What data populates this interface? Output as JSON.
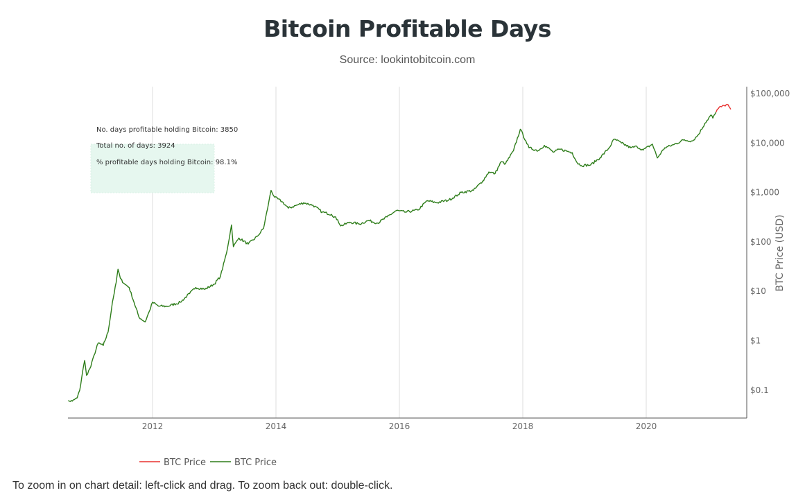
{
  "title": "Bitcoin Profitable Days",
  "subtitle": "Source: lookintobitcoin.com",
  "footer": "To zoom in on chart detail: left-click and drag. To zoom back out: double-click.",
  "annotations": {
    "profitable_days": "No. days profitable holding Bitcoin: 3850",
    "total_days": "Total no. of days: 3924",
    "pct_profitable": "% profitable days holding Bitcoin: 98.1%"
  },
  "chart_data": {
    "type": "line",
    "title": "Bitcoin Profitable Days",
    "ylabel": "BTC Price (USD)",
    "xlabel": "",
    "y_scale": "log",
    "y_axis_side": "right",
    "xlim": [
      2010.63,
      2021.4
    ],
    "ylim": [
      0.035,
      140000
    ],
    "x_ticks": [
      "2012",
      "2014",
      "2016",
      "2018",
      "2020"
    ],
    "y_ticks": [
      {
        "value": 0.1,
        "label": "$0.1"
      },
      {
        "value": 1,
        "label": "$1"
      },
      {
        "value": 10,
        "label": "$10"
      },
      {
        "value": 100,
        "label": "$100"
      },
      {
        "value": 1000,
        "label": "$1,000"
      },
      {
        "value": 10000,
        "label": "$10,000"
      },
      {
        "value": 100000,
        "label": "$100,000"
      }
    ],
    "grid": "vertical",
    "legend_placement": "bottom-left",
    "series": [
      {
        "name": "BTC Price",
        "color": "#e8312f",
        "points": [
          [
            2021.13,
            42000
          ],
          [
            2021.17,
            50000
          ],
          [
            2021.2,
            55000
          ],
          [
            2021.24,
            58000
          ],
          [
            2021.28,
            56000
          ],
          [
            2021.31,
            60000
          ],
          [
            2021.34,
            55000
          ],
          [
            2021.37,
            48000
          ]
        ]
      },
      {
        "name": "BTC Price",
        "color": "#2e7d1a",
        "points": [
          [
            2010.55,
            0.06
          ],
          [
            2010.7,
            0.06
          ],
          [
            2010.78,
            0.07
          ],
          [
            2010.82,
            0.1
          ],
          [
            2010.87,
            0.25
          ],
          [
            2010.9,
            0.4
          ],
          [
            2010.93,
            0.2
          ],
          [
            2011.0,
            0.3
          ],
          [
            2011.05,
            0.5
          ],
          [
            2011.12,
            0.9
          ],
          [
            2011.2,
            0.8
          ],
          [
            2011.28,
            1.5
          ],
          [
            2011.35,
            6
          ],
          [
            2011.41,
            15
          ],
          [
            2011.44,
            28
          ],
          [
            2011.48,
            18
          ],
          [
            2011.55,
            14
          ],
          [
            2011.62,
            12
          ],
          [
            2011.7,
            6
          ],
          [
            2011.78,
            3
          ],
          [
            2011.88,
            2.4
          ],
          [
            2011.95,
            4
          ],
          [
            2012.0,
            6
          ],
          [
            2012.1,
            5
          ],
          [
            2012.25,
            5
          ],
          [
            2012.45,
            6
          ],
          [
            2012.6,
            9
          ],
          [
            2012.7,
            12
          ],
          [
            2012.85,
            11
          ],
          [
            2013.0,
            14
          ],
          [
            2013.1,
            20
          ],
          [
            2013.2,
            60
          ],
          [
            2013.28,
            220
          ],
          [
            2013.31,
            80
          ],
          [
            2013.4,
            120
          ],
          [
            2013.55,
            90
          ],
          [
            2013.7,
            130
          ],
          [
            2013.8,
            190
          ],
          [
            2013.88,
            600
          ],
          [
            2013.92,
            1100
          ],
          [
            2013.98,
            800
          ],
          [
            2014.1,
            650
          ],
          [
            2014.2,
            480
          ],
          [
            2014.35,
            560
          ],
          [
            2014.45,
            620
          ],
          [
            2014.6,
            550
          ],
          [
            2014.75,
            400
          ],
          [
            2014.9,
            360
          ],
          [
            2015.0,
            280
          ],
          [
            2015.05,
            210
          ],
          [
            2015.2,
            250
          ],
          [
            2015.35,
            230
          ],
          [
            2015.5,
            270
          ],
          [
            2015.65,
            240
          ],
          [
            2015.8,
            320
          ],
          [
            2015.95,
            430
          ],
          [
            2016.1,
            400
          ],
          [
            2016.3,
            440
          ],
          [
            2016.45,
            680
          ],
          [
            2016.6,
            620
          ],
          [
            2016.8,
            700
          ],
          [
            2016.95,
            900
          ],
          [
            2017.0,
            1000
          ],
          [
            2017.2,
            1100
          ],
          [
            2017.35,
            1700
          ],
          [
            2017.45,
            2600
          ],
          [
            2017.55,
            2400
          ],
          [
            2017.65,
            4200
          ],
          [
            2017.72,
            3800
          ],
          [
            2017.85,
            7000
          ],
          [
            2017.96,
            19000
          ],
          [
            2018.05,
            11000
          ],
          [
            2018.1,
            8000
          ],
          [
            2018.25,
            7000
          ],
          [
            2018.35,
            9000
          ],
          [
            2018.5,
            6500
          ],
          [
            2018.6,
            7500
          ],
          [
            2018.8,
            6400
          ],
          [
            2018.88,
            4000
          ],
          [
            2018.95,
            3500
          ],
          [
            2019.1,
            3600
          ],
          [
            2019.25,
            5000
          ],
          [
            2019.4,
            8000
          ],
          [
            2019.48,
            12000
          ],
          [
            2019.6,
            10000
          ],
          [
            2019.75,
            8000
          ],
          [
            2019.85,
            8500
          ],
          [
            2019.95,
            7200
          ],
          [
            2020.1,
            9500
          ],
          [
            2020.18,
            5000
          ],
          [
            2020.3,
            8000
          ],
          [
            2020.45,
            9300
          ],
          [
            2020.6,
            11500
          ],
          [
            2020.75,
            11000
          ],
          [
            2020.85,
            15000
          ],
          [
            2020.95,
            25000
          ],
          [
            2021.05,
            37000
          ],
          [
            2021.08,
            32000
          ],
          [
            2021.13,
            42000
          ]
        ]
      }
    ]
  }
}
